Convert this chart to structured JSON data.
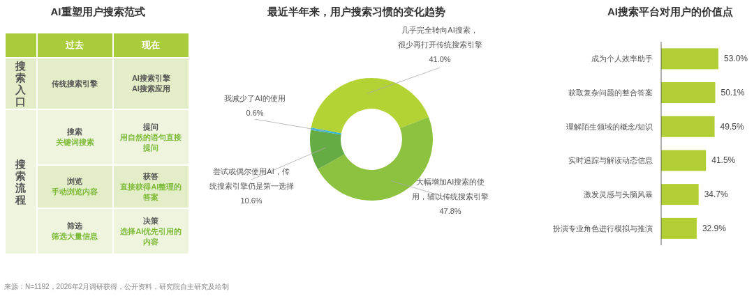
{
  "chart_data": [
    {
      "type": "other",
      "title": "AI重塑用户搜索范式",
      "categories": [
        "过去",
        "现在"
      ],
      "y_categories": [
        "搜索入口",
        "搜索流程",
        null,
        null
      ],
      "cell_labels": [
        [
          [
            "传统搜索引擎"
          ],
          [
            "AI搜索引擎",
            "AI搜索应用"
          ]
        ],
        [
          [
            "搜索",
            "关键词搜索"
          ],
          [
            "提问",
            "用自然的语句直接提问"
          ]
        ],
        [
          [
            "浏览",
            "手动浏览内容"
          ],
          [
            "获答",
            "直接获得AI整理的答案"
          ]
        ],
        [
          [
            "筛选",
            "筛选大量信息"
          ],
          [
            "决策",
            "选择AI优先引用的内容"
          ]
        ]
      ],
      "annotations": [
        "来源：N=1192，2026年2月调研获得，公开资料，研究院自主研究及绘制"
      ]
    },
    {
      "type": "donut",
      "title": "最近半年来，用户搜索习惯的变化趋势",
      "categories": [
        "几乎完全转向AI搜索，很少再打开传统搜索引擎",
        "大幅增加AI搜索的使用，辅以传统搜索引擎",
        "尝试或偶尔使用AI，传统搜索引擎仍是第一选择",
        "我减少了AI的使用"
      ],
      "values": [
        41.0,
        47.8,
        10.6,
        0.6
      ],
      "colors": [
        "#b3d234",
        "#8cc23f",
        "#66ac45",
        "#2cb6dc"
      ],
      "value_labels": [
        "41.0%",
        "47.8%",
        "10.6%",
        "0.6%"
      ]
    },
    {
      "type": "bar",
      "orientation": "horizontal",
      "title": "AI搜索平台对用户的价值点",
      "categories": [
        "成为个人效率助手",
        "获取复杂问题的整合答案",
        "理解陌生领域的概念/知识",
        "实时追踪与解读动态信息",
        "激发灵感与头脑风暴",
        "扮演专业角色进行模拟与推演"
      ],
      "values": [
        53.0,
        50.1,
        49.5,
        41.5,
        34.7,
        32.9
      ],
      "color": "#b1cf35",
      "value_labels": [
        "53.0%",
        "50.1%",
        "49.5%",
        "41.5%",
        "34.7%",
        "32.9%"
      ]
    }
  ]
}
